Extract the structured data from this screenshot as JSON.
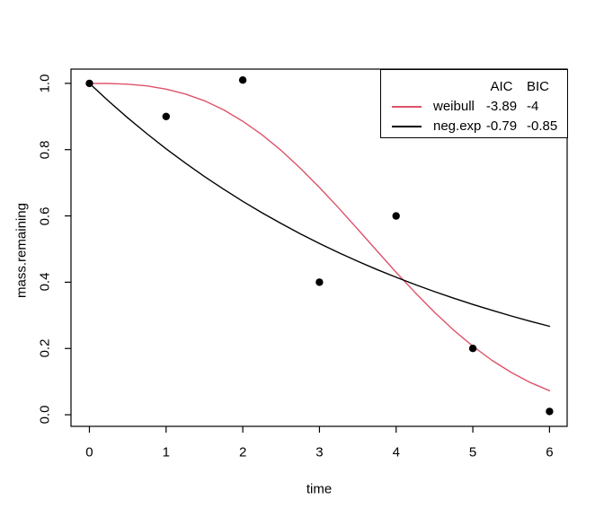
{
  "figure": {
    "background": "#ffffff",
    "accent_color": "#DF536B",
    "foreground_color": "#000000"
  },
  "legend": {
    "col_headers": [
      "AIC",
      "BIC"
    ],
    "rows": [
      {
        "name": "weibull",
        "aic": "-3.89",
        "bic": "-4",
        "color": "#DF536B"
      },
      {
        "name": "neg.exp",
        "aic": "-0.79",
        "bic": "-0.85",
        "color": "#000000"
      }
    ]
  },
  "chart_data": {
    "type": "scatter",
    "title": "",
    "xlabel": "time",
    "ylabel": "mass.remaining",
    "xlim": [
      -0.24,
      6.23
    ],
    "ylim": [
      -0.035,
      1.043
    ],
    "x_tick_labels": [
      "0",
      "1",
      "2",
      "3",
      "4",
      "5",
      "6"
    ],
    "x_tick_values": [
      0,
      1,
      2,
      3,
      4,
      5,
      6
    ],
    "y_tick_labels": [
      "0.0",
      "0.2",
      "0.4",
      "0.6",
      "0.8",
      "1.0"
    ],
    "y_tick_values": [
      0,
      0.2,
      0.4,
      0.6,
      0.8,
      1.0
    ],
    "grid": false,
    "legend_position": "topright",
    "points": {
      "name": "observations",
      "color": "#000000",
      "marker": "filled-circle",
      "x": [
        0,
        1,
        2,
        3,
        4,
        5,
        6
      ],
      "y": [
        1.0,
        0.9,
        1.01,
        0.4,
        0.6,
        0.2,
        0.01
      ]
    },
    "series": [
      {
        "name": "weibull",
        "color": "#DF536B",
        "aic": -3.89,
        "bic": -4,
        "x": [
          0,
          0.25,
          0.5,
          0.75,
          1,
          1.25,
          1.5,
          1.75,
          2,
          2.25,
          2.5,
          2.75,
          3,
          3.25,
          3.5,
          3.75,
          4,
          4.25,
          4.5,
          4.75,
          5,
          5.25,
          5.5,
          5.75,
          6
        ],
        "y": [
          1,
          0.9996,
          0.9975,
          0.9923,
          0.9827,
          0.968,
          0.9473,
          0.92,
          0.8857,
          0.8449,
          0.7975,
          0.7441,
          0.6858,
          0.6239,
          0.5596,
          0.4944,
          0.4299,
          0.3679,
          0.3093,
          0.2553,
          0.2069,
          0.1642,
          0.1277,
          0.0972,
          0.0724
        ]
      },
      {
        "name": "neg.exp",
        "color": "#000000",
        "aic": -0.79,
        "bic": -0.85,
        "x": [
          0,
          0.25,
          0.5,
          0.75,
          1,
          1.25,
          1.5,
          1.75,
          2,
          2.25,
          2.5,
          2.75,
          3,
          3.25,
          3.5,
          3.75,
          4,
          4.25,
          4.5,
          4.75,
          5,
          5.25,
          5.5,
          5.75,
          6
        ],
        "y": [
          1,
          0.9465,
          0.8958,
          0.8479,
          0.8025,
          0.7596,
          0.7189,
          0.6805,
          0.644,
          0.6096,
          0.577,
          0.5461,
          0.5169,
          0.4892,
          0.463,
          0.4382,
          0.4148,
          0.3926,
          0.3716,
          0.3517,
          0.3329,
          0.3151,
          0.2982,
          0.2822,
          0.2671
        ]
      }
    ]
  }
}
